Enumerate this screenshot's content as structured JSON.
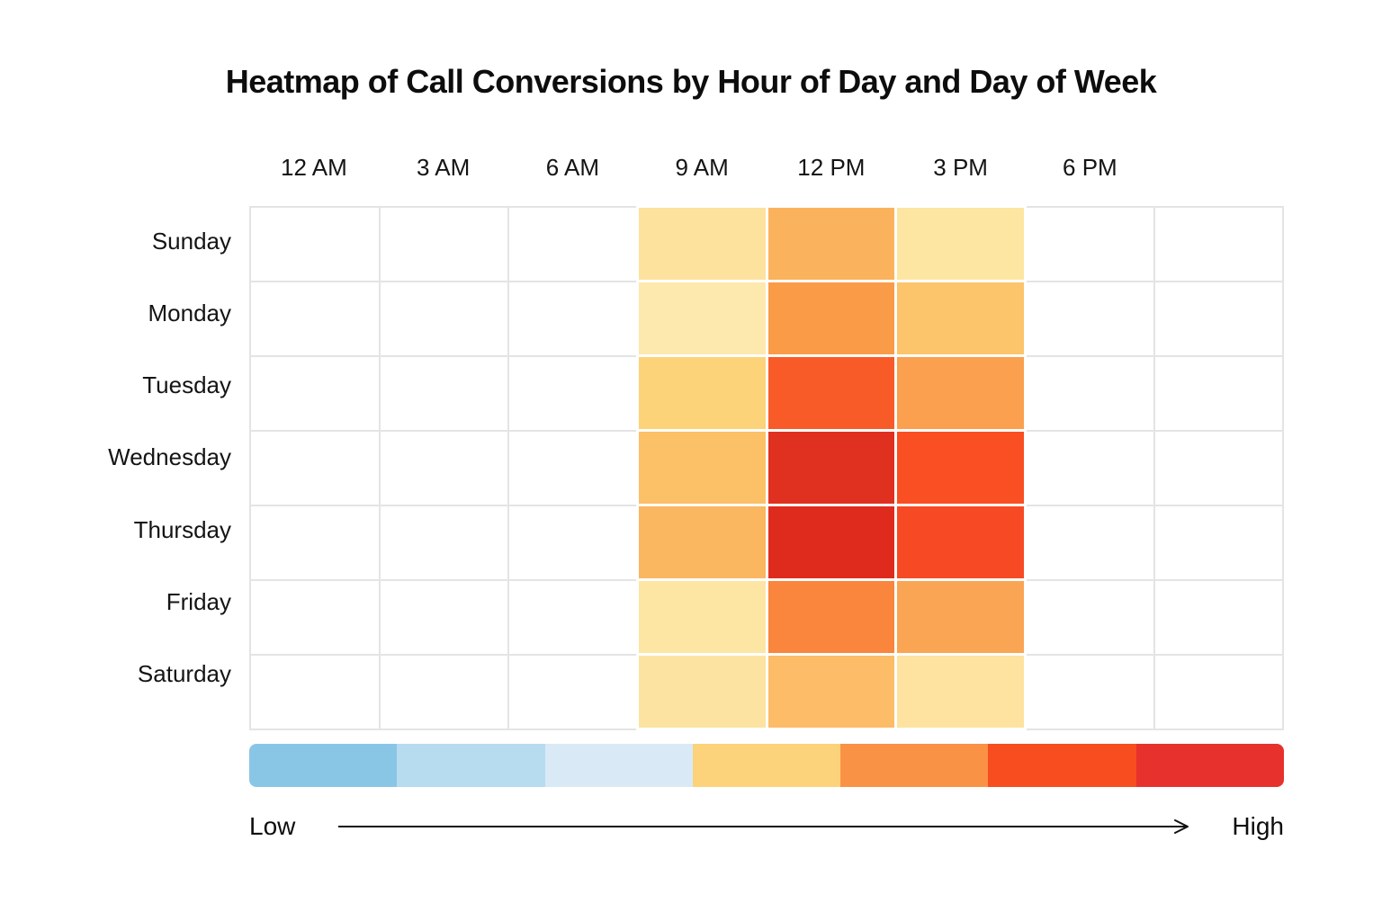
{
  "title": "Heatmap of Call Conversions by Hour of Day and Day of Week",
  "chart_data": {
    "type": "heatmap",
    "title": "Heatmap of Call Conversions by Hour of Day and Day of Week",
    "x_axis": {
      "labels": [
        "12 AM",
        "3 AM",
        "6 AM",
        "9 AM",
        "12 PM",
        "3 PM",
        "6 PM"
      ],
      "total_columns": 8
    },
    "y_axis": {
      "labels": [
        "Sunday",
        "Monday",
        "Tuesday",
        "Wednesday",
        "Thursday",
        "Friday",
        "Saturday"
      ]
    },
    "cells": {
      "colors": [
        [
          null,
          null,
          null,
          "#fde29d",
          "#fbb25c",
          "#fde5a2",
          null,
          null
        ],
        [
          null,
          null,
          null,
          "#fde8ad",
          "#fa9b48",
          "#fcc46b",
          null,
          null
        ],
        [
          null,
          null,
          null,
          "#fcd378",
          "#f95b28",
          "#faa04e",
          null,
          null
        ],
        [
          null,
          null,
          null,
          "#fcc067",
          "#e0301f",
          "#f94f22",
          null,
          null
        ],
        [
          null,
          null,
          null,
          "#fbb660",
          "#df2b1e",
          "#f74a24",
          null,
          null
        ],
        [
          null,
          null,
          null,
          "#fde5a4",
          "#fa853c",
          "#faa554",
          null,
          null
        ],
        [
          null,
          null,
          null,
          "#fde3a2",
          "#fcbc68",
          "#fde2a0",
          null,
          null
        ]
      ],
      "intensity_level_1to7": [
        [
          0,
          0,
          0,
          4,
          5,
          4,
          0,
          0
        ],
        [
          0,
          0,
          0,
          4,
          5,
          4,
          0,
          0
        ],
        [
          0,
          0,
          0,
          4,
          6,
          5,
          0,
          0
        ],
        [
          0,
          0,
          0,
          5,
          7,
          6,
          0,
          0
        ],
        [
          0,
          0,
          0,
          5,
          7,
          6,
          0,
          0
        ],
        [
          0,
          0,
          0,
          4,
          6,
          5,
          0,
          0
        ],
        [
          0,
          0,
          0,
          4,
          5,
          4,
          0,
          0
        ]
      ]
    },
    "legend": {
      "colors": [
        "#89c6e6",
        "#b7dbef",
        "#d9eaf6",
        "#fcd37a",
        "#fa9245",
        "#f84d1f",
        "#e7312d"
      ],
      "low_label": "Low",
      "high_label": "High"
    },
    "grid": true,
    "legend_position": "bottom"
  }
}
